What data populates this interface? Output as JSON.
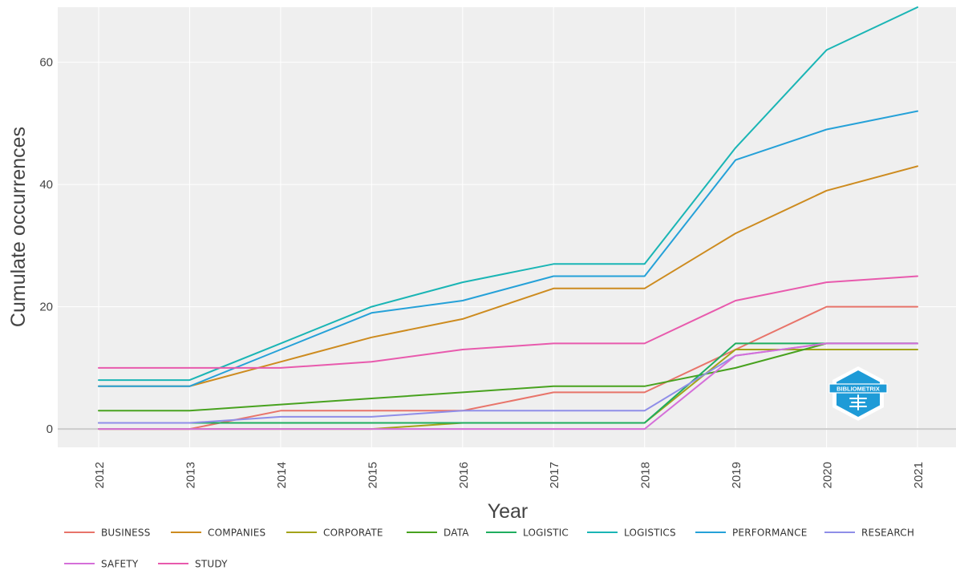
{
  "chart_data": {
    "type": "line",
    "xlabel": "Year",
    "ylabel": "Cumulate occurrences",
    "x": [
      "2012",
      "2013",
      "2014",
      "2015",
      "2016",
      "2017",
      "2018",
      "2019",
      "2020",
      "2021"
    ],
    "ylim": [
      -3,
      69
    ],
    "yticks": [
      0,
      20,
      40,
      60
    ],
    "grid": true,
    "background": "#efefef",
    "legend_position": "bottom",
    "series": [
      {
        "name": "BUSINESS",
        "color": "#e8746a",
        "values": [
          0,
          0,
          3,
          3,
          3,
          6,
          6,
          13,
          20,
          20
        ]
      },
      {
        "name": "COMPANIES",
        "color": "#cd8b1f",
        "values": [
          7,
          7,
          11,
          15,
          18,
          23,
          23,
          32,
          39,
          43
        ]
      },
      {
        "name": "CORPORATE",
        "color": "#a3a319",
        "values": [
          0,
          0,
          0,
          0,
          1,
          1,
          1,
          13,
          13,
          13
        ]
      },
      {
        "name": "DATA",
        "color": "#48a21f",
        "values": [
          3,
          3,
          4,
          5,
          6,
          7,
          7,
          10,
          14,
          14
        ]
      },
      {
        "name": "LOGISTIC",
        "color": "#1fad5f",
        "values": [
          1,
          1,
          1,
          1,
          1,
          1,
          1,
          14,
          14,
          14
        ]
      },
      {
        "name": "LOGISTICS",
        "color": "#1ab5b5",
        "values": [
          8,
          8,
          14,
          20,
          24,
          27,
          27,
          46,
          62,
          69
        ]
      },
      {
        "name": "PERFORMANCE",
        "color": "#25a1d8",
        "values": [
          7,
          7,
          13,
          19,
          21,
          25,
          25,
          44,
          49,
          52
        ]
      },
      {
        "name": "RESEARCH",
        "color": "#8f8ee8",
        "values": [
          1,
          1,
          2,
          2,
          3,
          3,
          3,
          12,
          14,
          14
        ]
      },
      {
        "name": "SAFETY",
        "color": "#d56fd9",
        "values": [
          0,
          0,
          0,
          0,
          0,
          0,
          0,
          12,
          14,
          14
        ]
      },
      {
        "name": "STUDY",
        "color": "#e85aad",
        "values": [
          10,
          10,
          10,
          11,
          13,
          14,
          14,
          21,
          24,
          25
        ]
      }
    ]
  },
  "logo": {
    "text": "BIBLIOMETRIX",
    "color": "#1e9bd7"
  }
}
